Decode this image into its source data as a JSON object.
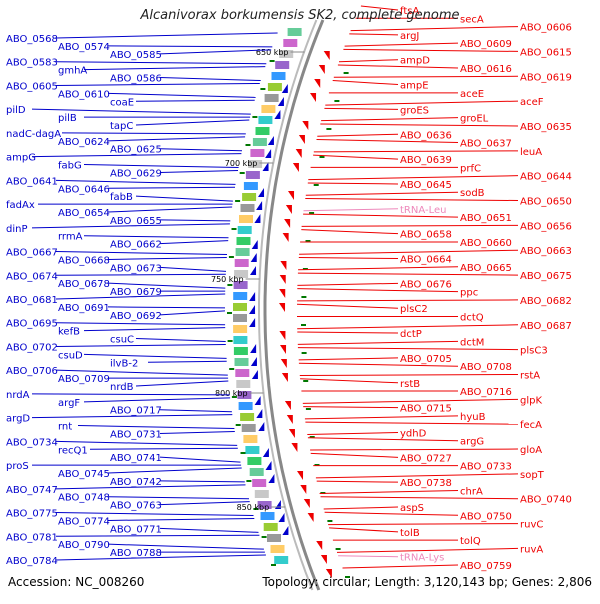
{
  "map": {
    "title": "Alcanivorax borkumensis SK2, complete genome",
    "accession_text": "Accession: NC_008260",
    "summary_text": "Topology: circular; Length: 3,120,143 bp; Genes: 2,806",
    "colors": {
      "left_strand": "#0000cc",
      "right_strand": "#ee0000",
      "rna": "#ee88bb",
      "backbone": "#888888",
      "tick": "#007700"
    },
    "ticks": [
      {
        "label": "650 kbp"
      },
      {
        "label": "700 kbp"
      },
      {
        "label": "750 kbp"
      },
      {
        "label": "800 kbp"
      },
      {
        "label": "850 kbp"
      }
    ],
    "left_labels": [
      {
        "text": "ABO_0568"
      },
      {
        "text": "ABO_0574"
      },
      {
        "text": "ABO_0585"
      },
      {
        "text": "ABO_0583"
      },
      {
        "text": "gmhA"
      },
      {
        "text": "ABO_0586"
      },
      {
        "text": "ABO_0605"
      },
      {
        "text": "ABO_0610"
      },
      {
        "text": "coaE"
      },
      {
        "text": "pilD"
      },
      {
        "text": "pilB"
      },
      {
        "text": "tapC"
      },
      {
        "text": "nadC-dagA"
      },
      {
        "text": "ABO_0624"
      },
      {
        "text": "ABO_0625"
      },
      {
        "text": "ampG"
      },
      {
        "text": "fabG"
      },
      {
        "text": "ABO_0629"
      },
      {
        "text": "ABO_0641"
      },
      {
        "text": "ABO_0646"
      },
      {
        "text": "fabB"
      },
      {
        "text": "fadAx"
      },
      {
        "text": "ABO_0654"
      },
      {
        "text": "ABO_0655"
      },
      {
        "text": "dinP"
      },
      {
        "text": "rrmA"
      },
      {
        "text": "ABO_0662"
      },
      {
        "text": "ABO_0667"
      },
      {
        "text": "ABO_0668"
      },
      {
        "text": "ABO_0673"
      },
      {
        "text": "ABO_0674"
      },
      {
        "text": "ABO_0678"
      },
      {
        "text": "ABO_0679"
      },
      {
        "text": "ABO_0681"
      },
      {
        "text": "ABO_0691"
      },
      {
        "text": "ABO_0692"
      },
      {
        "text": "ABO_0695"
      },
      {
        "text": "kefB"
      },
      {
        "text": "csuC"
      },
      {
        "text": "ABO_0702"
      },
      {
        "text": "csuD"
      },
      {
        "text": "ilvB-2"
      },
      {
        "text": "ABO_0706"
      },
      {
        "text": "ABO_0709"
      },
      {
        "text": "nrdB"
      },
      {
        "text": "nrdA"
      },
      {
        "text": "argF"
      },
      {
        "text": "ABO_0717"
      },
      {
        "text": "argD"
      },
      {
        "text": "rnt"
      },
      {
        "text": "ABO_0731"
      },
      {
        "text": "ABO_0734"
      },
      {
        "text": "recQ1"
      },
      {
        "text": "ABO_0741"
      },
      {
        "text": "proS"
      },
      {
        "text": "ABO_0745"
      },
      {
        "text": "ABO_0742"
      },
      {
        "text": "ABO_0747"
      },
      {
        "text": "ABO_0748"
      },
      {
        "text": "ABO_0763"
      },
      {
        "text": "ABO_0775"
      },
      {
        "text": "ABO_0774"
      },
      {
        "text": "ABO_0771"
      },
      {
        "text": "ABO_0781"
      },
      {
        "text": "ABO_0790"
      },
      {
        "text": "ABO_0788"
      },
      {
        "text": "ABO_0784"
      }
    ],
    "right_labels": [
      {
        "text": "ftsA"
      },
      {
        "text": "secA"
      },
      {
        "text": "ABO_0606"
      },
      {
        "text": "argJ"
      },
      {
        "text": "ABO_0609"
      },
      {
        "text": "ABO_0615"
      },
      {
        "text": "ampD"
      },
      {
        "text": "ABO_0616"
      },
      {
        "text": "ABO_0619"
      },
      {
        "text": "ampE"
      },
      {
        "text": "aceE"
      },
      {
        "text": "aceF"
      },
      {
        "text": "groES"
      },
      {
        "text": "groEL"
      },
      {
        "text": "ABO_0635"
      },
      {
        "text": "ABO_0636"
      },
      {
        "text": "ABO_0637"
      },
      {
        "text": "leuA"
      },
      {
        "text": "ABO_0639"
      },
      {
        "text": "prfC"
      },
      {
        "text": "ABO_0644"
      },
      {
        "text": "ABO_0645"
      },
      {
        "text": "sodB"
      },
      {
        "text": "ABO_0650"
      },
      {
        "text": "tRNA-Leu",
        "rna": true
      },
      {
        "text": "ABO_0651"
      },
      {
        "text": "ABO_0656"
      },
      {
        "text": "ABO_0658"
      },
      {
        "text": "ABO_0660"
      },
      {
        "text": "ABO_0663"
      },
      {
        "text": "ABO_0664"
      },
      {
        "text": "ABO_0665"
      },
      {
        "text": "ABO_0675"
      },
      {
        "text": "ABO_0676"
      },
      {
        "text": "ppc"
      },
      {
        "text": "ABO_0682"
      },
      {
        "text": "plsC2"
      },
      {
        "text": "dctQ"
      },
      {
        "text": "ABO_0687"
      },
      {
        "text": "dctP"
      },
      {
        "text": "dctM"
      },
      {
        "text": "plsC3"
      },
      {
        "text": "ABO_0705"
      },
      {
        "text": "ABO_0708"
      },
      {
        "text": "rstA"
      },
      {
        "text": "rstB"
      },
      {
        "text": "ABO_0716"
      },
      {
        "text": "glpK"
      },
      {
        "text": "ABO_0715"
      },
      {
        "text": "hyuB"
      },
      {
        "text": "fecA"
      },
      {
        "text": "ydhD"
      },
      {
        "text": "argG"
      },
      {
        "text": "gloA"
      },
      {
        "text": "ABO_0727"
      },
      {
        "text": "ABO_0733"
      },
      {
        "text": "sopT"
      },
      {
        "text": "ABO_0738"
      },
      {
        "text": "chrA"
      },
      {
        "text": "ABO_0740"
      },
      {
        "text": "aspS"
      },
      {
        "text": "ABO_0750"
      },
      {
        "text": "ruvC"
      },
      {
        "text": "tolB"
      },
      {
        "text": "tolQ"
      },
      {
        "text": "ruvA"
      },
      {
        "text": "tRNA-Lys",
        "rna": true
      },
      {
        "text": "ABO_0759"
      }
    ]
  }
}
